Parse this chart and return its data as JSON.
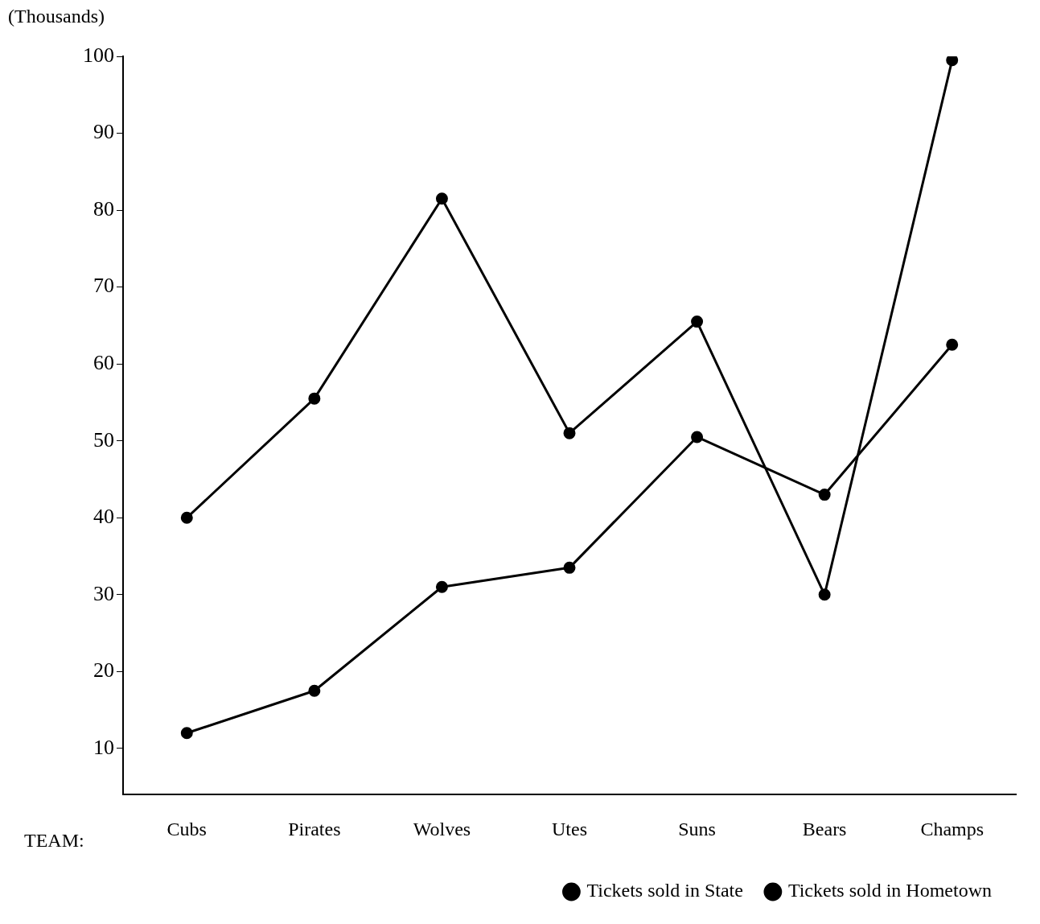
{
  "chart_data": {
    "type": "line",
    "ylabel": "(Thousands)",
    "xlabel": "TEAM:",
    "categories": [
      "Cubs",
      "Pirates",
      "Wolves",
      "Utes",
      "Suns",
      "Bears",
      "Champs"
    ],
    "series": [
      {
        "name": "Tickets sold in State",
        "color": "#000000",
        "line_style": "solid",
        "values": [
          40,
          55.5,
          81.5,
          51,
          65.5,
          30,
          99.5
        ]
      },
      {
        "name": "Tickets sold in Hometown",
        "color": "#000000",
        "line_style": "solid",
        "values": [
          12,
          17.5,
          31,
          33.5,
          50.5,
          43,
          62.5
        ]
      }
    ],
    "ylim": [
      4,
      100
    ],
    "yticks": [
      10,
      20,
      30,
      40,
      50,
      60,
      70,
      80,
      90,
      100
    ],
    "grid": false,
    "marker": "circle",
    "legend": "bottom right"
  }
}
